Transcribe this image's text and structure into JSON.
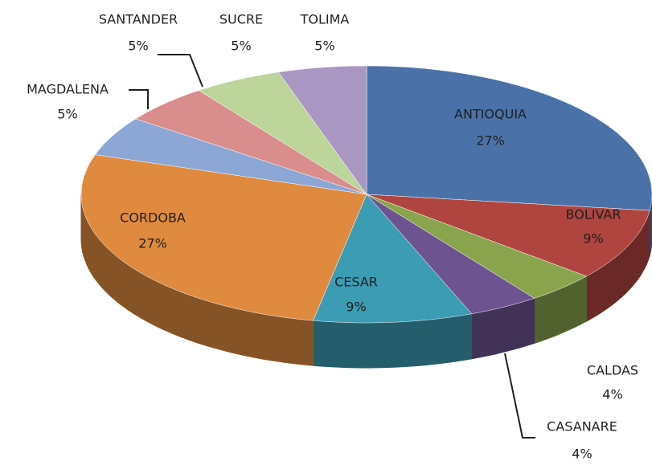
{
  "chart_data": {
    "type": "pie3d",
    "categories": [
      "ANTIOQUIA",
      "BOLIVAR",
      "CALDAS",
      "CASANARE",
      "CESAR",
      "CORDOBA",
      "MAGDALENA",
      "SANTANDER",
      "SUCRE",
      "TOLIMA"
    ],
    "values": [
      27,
      9,
      4,
      4,
      9,
      27,
      5,
      5,
      5,
      5
    ],
    "value_labels": [
      "27%",
      "9%",
      "4%",
      "4%",
      "9%",
      "27%",
      "5%",
      "5%",
      "5%",
      "5%"
    ],
    "colors": [
      "#4a72a8",
      "#b0443f",
      "#89a44c",
      "#6e5391",
      "#3c9cb4",
      "#e08a3f",
      "#8ca7d6",
      "#d98e8d",
      "#bdd59b",
      "#a996c3"
    ]
  }
}
